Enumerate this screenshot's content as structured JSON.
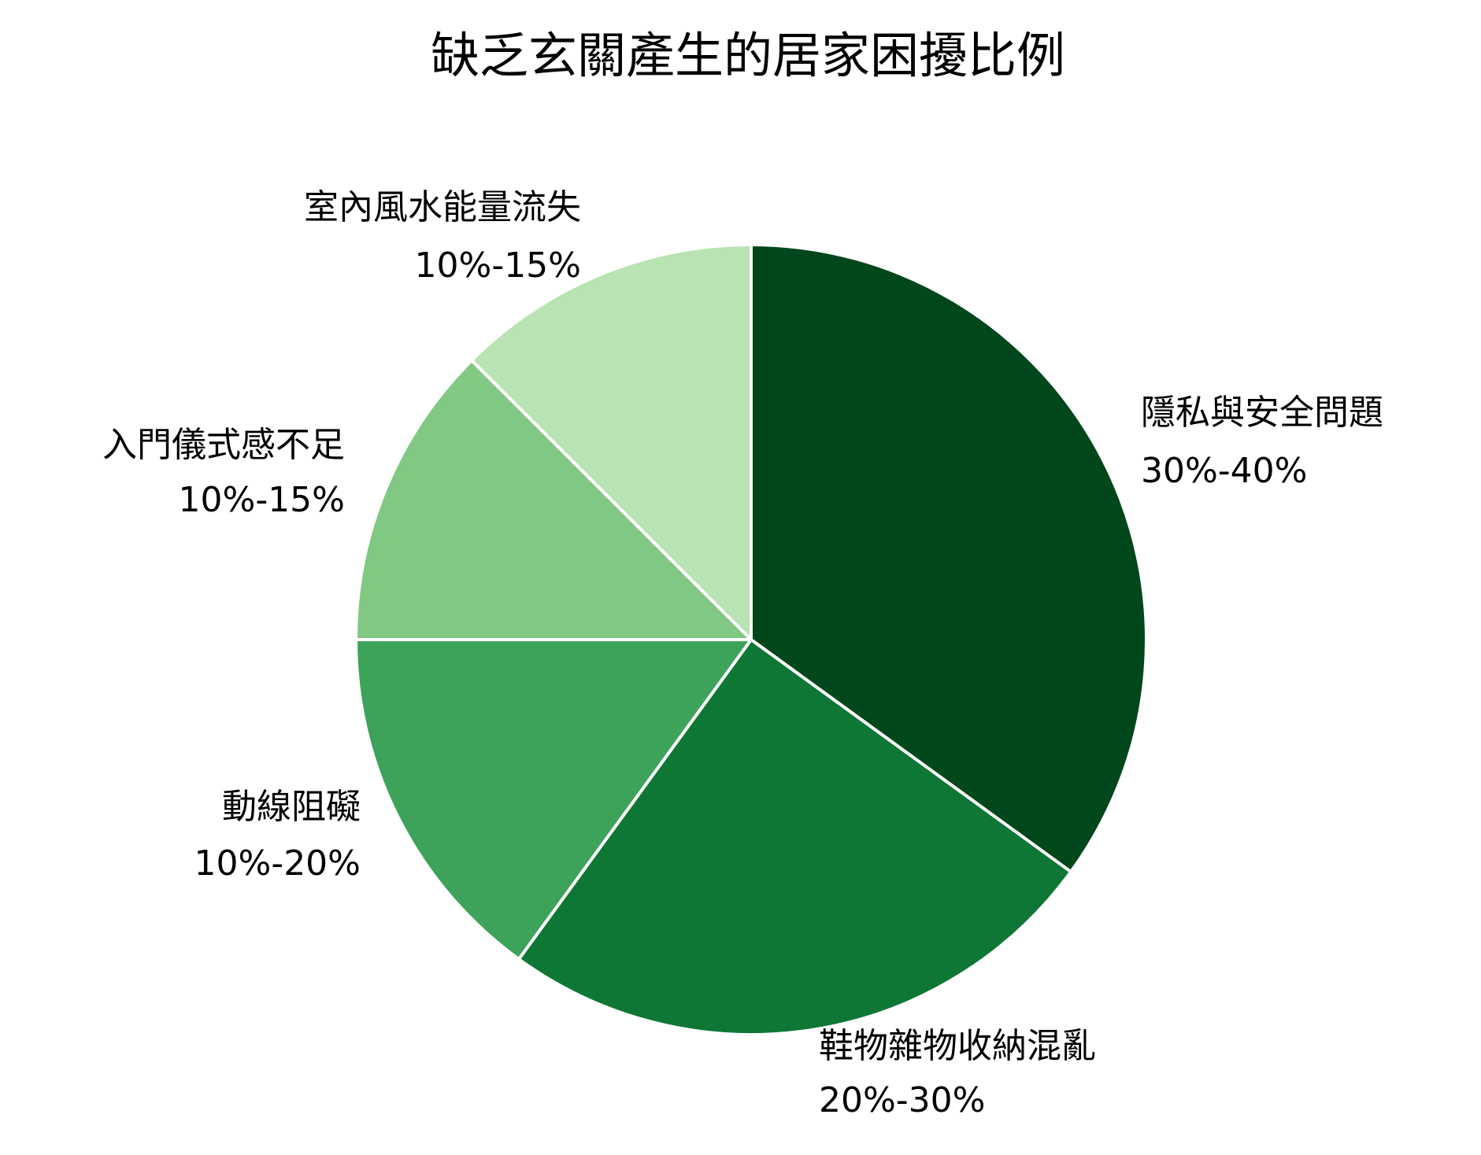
{
  "chart_data": {
    "type": "pie",
    "title": "缺乏玄關產生的居家困擾比例",
    "slices": [
      {
        "label": "隱私與安全問題",
        "value_text": "30%-40%",
        "value": 35,
        "color": "#00471b"
      },
      {
        "label": "鞋物雜物收納混亂",
        "value_text": "20%-30%",
        "value": 25,
        "color": "#0e7735"
      },
      {
        "label": "動線阻礙",
        "value_text": "10%-20%",
        "value": 15,
        "color": "#3da35a"
      },
      {
        "label": "入門儀式感不足",
        "value_text": "10%-15%",
        "value": 12.5,
        "color": "#81c882"
      },
      {
        "label": "室內風水能量流失",
        "value_text": "10%-15%",
        "value": 12.5,
        "color": "#b9e3b2"
      }
    ],
    "start_angle": "12 o'clock",
    "direction": "clockwise",
    "legend": "none"
  }
}
